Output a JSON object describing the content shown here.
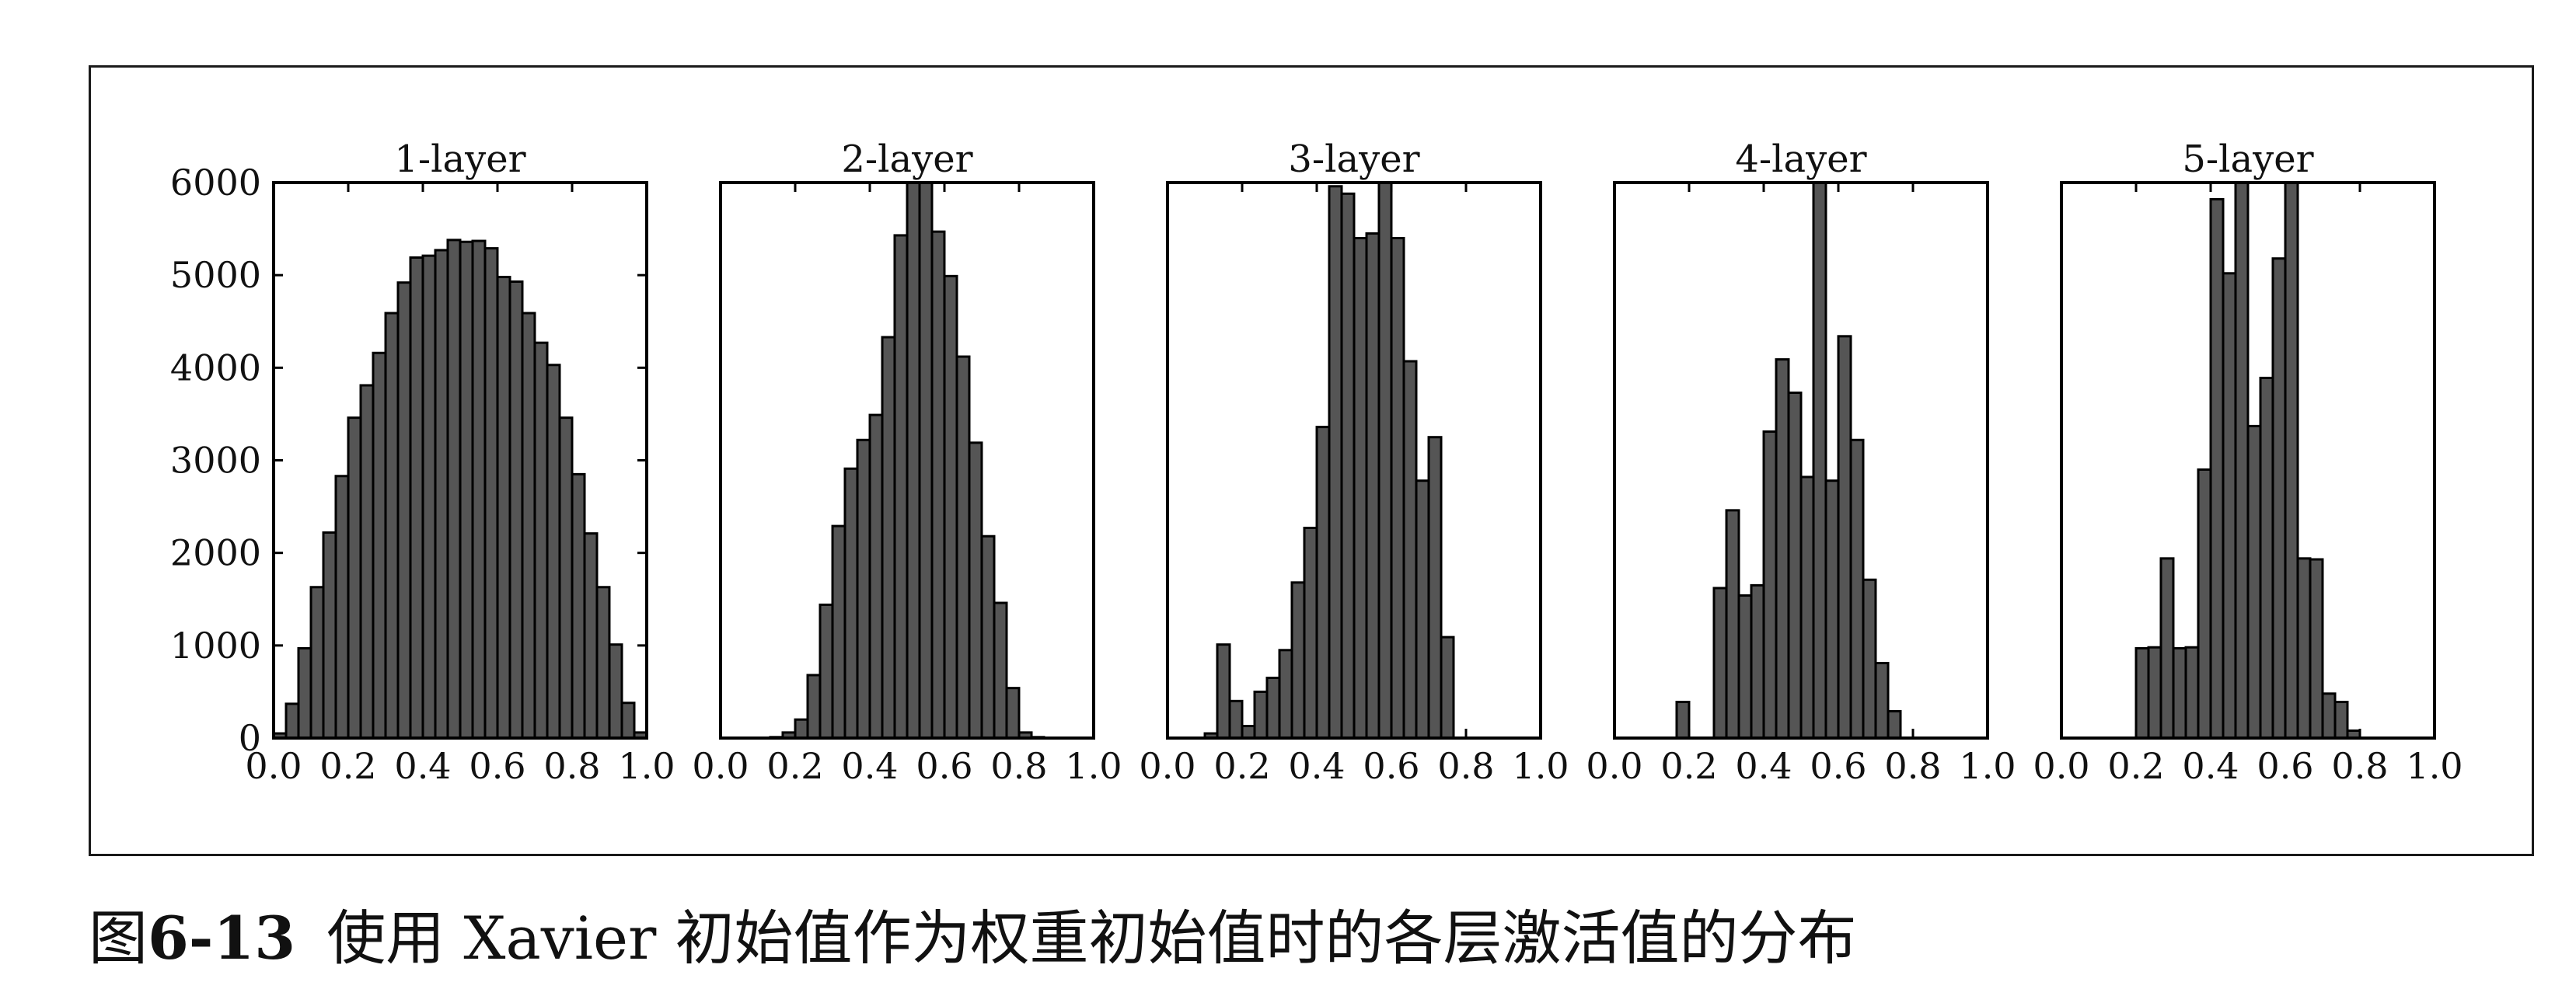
{
  "caption": {
    "label": "图",
    "number": "6-13",
    "text": "使用 Xavier 初始值作为权重初始值时的各层激活值的分布"
  },
  "colors": {
    "bar": "#555555",
    "bar_edge": "#000000"
  },
  "chart_data": [
    {
      "type": "bar",
      "title": "1-layer",
      "xlim": [
        0,
        1
      ],
      "ylim": [
        0,
        6000
      ],
      "xticks": [
        "0.0",
        "0.2",
        "0.4",
        "0.6",
        "0.8",
        "1.0"
      ],
      "yticks": [
        "0",
        "1000",
        "2000",
        "3000",
        "4000",
        "5000",
        "6000"
      ],
      "bin_width": 0.0333,
      "x": [
        0.0167,
        0.05,
        0.0833,
        0.1167,
        0.15,
        0.1833,
        0.2167,
        0.25,
        0.2833,
        0.3167,
        0.35,
        0.3833,
        0.4167,
        0.45,
        0.4833,
        0.5167,
        0.55,
        0.5833,
        0.6167,
        0.65,
        0.6833,
        0.7167,
        0.75,
        0.7833,
        0.8167,
        0.85,
        0.8833,
        0.9167,
        0.95,
        0.9833
      ],
      "values": [
        50,
        370,
        970,
        1630,
        2220,
        2830,
        3460,
        3810,
        4160,
        4590,
        4920,
        5190,
        5210,
        5270,
        5380,
        5360,
        5370,
        5290,
        4980,
        4930,
        4590,
        4270,
        4030,
        3460,
        2850,
        2210,
        1630,
        1010,
        380,
        60
      ]
    },
    {
      "type": "bar",
      "title": "2-layer",
      "xlim": [
        0,
        1
      ],
      "ylim": [
        0,
        6000
      ],
      "xticks": [
        "0.0",
        "0.2",
        "0.4",
        "0.6",
        "0.8",
        "1.0"
      ],
      "bin_width": 0.0333,
      "x": [
        0.15,
        0.1833,
        0.2167,
        0.25,
        0.2833,
        0.3167,
        0.35,
        0.3833,
        0.4167,
        0.45,
        0.4833,
        0.5167,
        0.55,
        0.5833,
        0.6167,
        0.65,
        0.6833,
        0.7167,
        0.75,
        0.7833,
        0.8167,
        0.85
      ],
      "values": [
        10,
        60,
        200,
        680,
        1440,
        2290,
        2910,
        3220,
        3490,
        4330,
        5430,
        6000,
        6000,
        5470,
        4990,
        4120,
        3190,
        2180,
        1460,
        540,
        60,
        10
      ]
    },
    {
      "type": "bar",
      "title": "3-layer",
      "xlim": [
        0,
        1
      ],
      "ylim": [
        0,
        6000
      ],
      "xticks": [
        "0.0",
        "0.2",
        "0.4",
        "0.6",
        "0.8",
        "1.0"
      ],
      "bin_width": 0.0333,
      "x": [
        0.1167,
        0.15,
        0.1833,
        0.2167,
        0.25,
        0.2833,
        0.3167,
        0.35,
        0.3833,
        0.4167,
        0.45,
        0.4833,
        0.5167,
        0.55,
        0.5833,
        0.6167,
        0.65,
        0.6833,
        0.7167,
        0.75
      ],
      "values": [
        50,
        1010,
        400,
        130,
        500,
        650,
        950,
        1680,
        2270,
        3360,
        5960,
        5880,
        5400,
        5450,
        6000,
        5400,
        4070,
        2780,
        3250,
        1090
      ]
    },
    {
      "type": "bar",
      "title": "4-layer",
      "xlim": [
        0,
        1
      ],
      "ylim": [
        0,
        6000
      ],
      "xticks": [
        "0.0",
        "0.2",
        "0.4",
        "0.6",
        "0.8",
        "1.0"
      ],
      "bin_width": 0.0333,
      "x": [
        0.1833,
        0.25,
        0.2833,
        0.3167,
        0.35,
        0.3833,
        0.4167,
        0.45,
        0.4833,
        0.5167,
        0.55,
        0.5833,
        0.6167,
        0.65,
        0.6833,
        0.7167,
        0.75
      ],
      "values": [
        390,
        0,
        1620,
        2460,
        1540,
        1650,
        3310,
        4090,
        3730,
        2820,
        6000,
        2780,
        4340,
        3220,
        1710,
        810,
        290
      ]
    },
    {
      "type": "bar",
      "title": "5-layer",
      "xlim": [
        0,
        1
      ],
      "ylim": [
        0,
        6000
      ],
      "xticks": [
        "0.0",
        "0.2",
        "0.4",
        "0.6",
        "0.8",
        "1.0"
      ],
      "bin_width": 0.0333,
      "x": [
        0.2167,
        0.25,
        0.2833,
        0.3167,
        0.35,
        0.3833,
        0.4167,
        0.45,
        0.4833,
        0.5167,
        0.55,
        0.5833,
        0.6167,
        0.65,
        0.6833,
        0.7167,
        0.75,
        0.7833
      ],
      "values": [
        970,
        980,
        1940,
        970,
        980,
        2900,
        5820,
        5020,
        6000,
        3370,
        3890,
        5180,
        6000,
        1940,
        1930,
        480,
        390,
        80
      ]
    }
  ]
}
